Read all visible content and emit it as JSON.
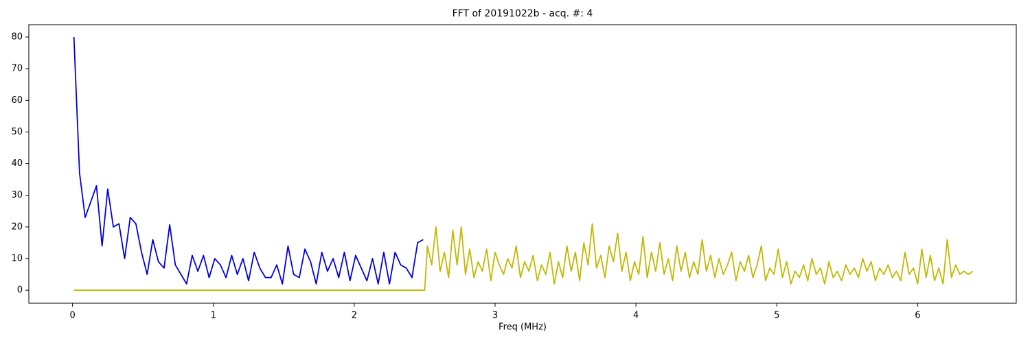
{
  "chart_data": {
    "type": "line",
    "title": "FFT of 20191022b - acq. #: 4",
    "xlabel": "Freq (MHz)",
    "xlim": [
      -0.31,
      6.7
    ],
    "ylim": [
      -4.1,
      83.9
    ],
    "xticks": [
      0,
      1,
      2,
      3,
      4,
      5,
      6
    ],
    "yticks": [
      0,
      10,
      20,
      30,
      40,
      50,
      60,
      70,
      80
    ],
    "series": [
      {
        "color": "#0000dd",
        "x": [
          0.01,
          0.05,
          0.09,
          0.13,
          0.17,
          0.21,
          0.25,
          0.29,
          0.33,
          0.37,
          0.41,
          0.45,
          0.49,
          0.53,
          0.57,
          0.61,
          0.65,
          0.69,
          0.73,
          0.77,
          0.81,
          0.85,
          0.89,
          0.93,
          0.97,
          1.01,
          1.05,
          1.09,
          1.13,
          1.17,
          1.21,
          1.25,
          1.29,
          1.33,
          1.37,
          1.41,
          1.45,
          1.49,
          1.53,
          1.57,
          1.61,
          1.65,
          1.69,
          1.73,
          1.77,
          1.81,
          1.85,
          1.89,
          1.93,
          1.97,
          2.01,
          2.05,
          2.09,
          2.13,
          2.17,
          2.21,
          2.25,
          2.29,
          2.33,
          2.37,
          2.41,
          2.45,
          2.49
        ],
        "values": [
          80,
          37,
          23,
          28,
          33,
          14,
          32,
          20,
          21,
          10,
          23,
          21,
          12,
          5,
          16,
          9,
          7,
          20.7,
          8,
          5,
          2,
          11,
          6,
          11,
          4,
          10,
          8,
          4,
          11,
          5,
          10,
          3,
          12,
          7,
          4,
          4,
          8,
          2,
          14,
          5,
          4,
          13,
          9,
          2,
          12,
          6,
          10,
          4,
          12,
          3,
          11,
          7,
          3,
          10,
          2,
          12,
          2,
          12,
          8,
          7,
          4,
          15,
          16
        ]
      },
      {
        "color": "#c0b800",
        "x": [
          0.01,
          2.5,
          2.52,
          2.55,
          2.58,
          2.61,
          2.64,
          2.67,
          2.7,
          2.73,
          2.76,
          2.79,
          2.82,
          2.85,
          2.88,
          2.91,
          2.94,
          2.97,
          3,
          3.03,
          3.06,
          3.09,
          3.12,
          3.15,
          3.18,
          3.21,
          3.24,
          3.27,
          3.3,
          3.33,
          3.36,
          3.39,
          3.42,
          3.45,
          3.48,
          3.51,
          3.54,
          3.57,
          3.6,
          3.63,
          3.66,
          3.69,
          3.72,
          3.75,
          3.78,
          3.81,
          3.84,
          3.87,
          3.9,
          3.93,
          3.96,
          3.99,
          4.02,
          4.05,
          4.08,
          4.11,
          4.14,
          4.17,
          4.2,
          4.23,
          4.26,
          4.29,
          4.32,
          4.35,
          4.38,
          4.41,
          4.44,
          4.47,
          4.5,
          4.53,
          4.56,
          4.59,
          4.62,
          4.65,
          4.68,
          4.71,
          4.74,
          4.77,
          4.8,
          4.83,
          4.86,
          4.89,
          4.92,
          4.95,
          4.98,
          5.01,
          5.04,
          5.07,
          5.1,
          5.13,
          5.16,
          5.19,
          5.22,
          5.25,
          5.28,
          5.31,
          5.34,
          5.37,
          5.4,
          5.43,
          5.46,
          5.49,
          5.52,
          5.55,
          5.58,
          5.61,
          5.64,
          5.67,
          5.7,
          5.73,
          5.76,
          5.79,
          5.82,
          5.85,
          5.88,
          5.91,
          5.94,
          5.97,
          6,
          6.03,
          6.06,
          6.09,
          6.12,
          6.15,
          6.18,
          6.21,
          6.24,
          6.27,
          6.3,
          6.33,
          6.36,
          6.39
        ],
        "values": [
          0,
          0,
          14,
          8,
          20,
          6,
          12,
          4,
          19,
          8,
          20,
          5,
          13,
          4,
          9,
          6,
          13,
          3,
          12,
          8,
          5,
          10,
          7,
          14,
          4,
          9,
          6,
          11,
          3,
          8,
          5,
          12,
          2,
          9,
          4,
          14,
          6,
          12,
          3,
          15,
          8,
          21,
          7,
          11,
          4,
          14,
          9,
          18,
          6,
          12,
          3,
          9,
          5,
          17,
          4,
          12,
          6,
          15,
          5,
          10,
          3,
          14,
          6,
          12,
          4,
          9,
          5,
          16,
          6,
          11,
          4,
          10,
          5,
          8,
          12,
          3,
          9,
          6,
          11,
          4,
          8,
          14,
          3,
          7,
          5,
          13,
          4,
          9,
          2,
          6,
          4,
          8,
          3,
          10,
          5,
          7,
          2,
          9,
          4,
          6,
          3,
          8,
          5,
          7,
          4,
          10,
          6,
          9,
          3,
          7,
          5,
          8,
          4,
          6,
          3,
          12,
          5,
          7,
          2,
          13,
          4,
          11,
          3,
          7,
          2,
          16,
          4,
          8,
          5,
          6,
          5,
          6
        ]
      }
    ]
  }
}
